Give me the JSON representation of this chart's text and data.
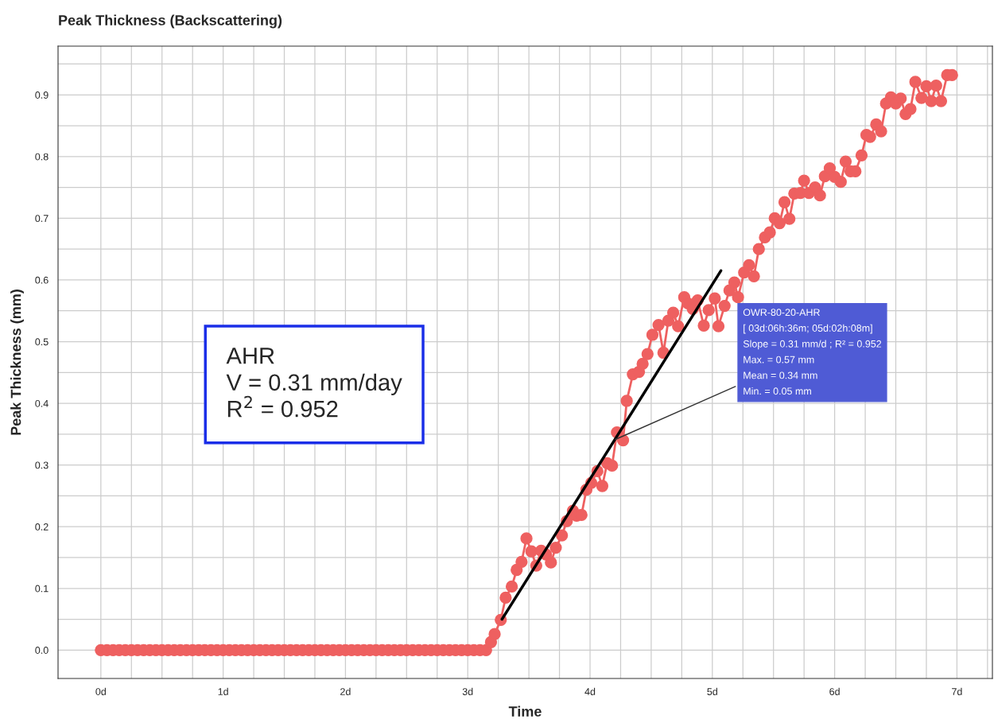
{
  "chart_data": {
    "type": "line",
    "title": "Peak Thickness (Backscattering)",
    "xlabel": "Time",
    "ylabel": "Peak Thickness (mm)",
    "xlim": [
      -0.35,
      7.29
    ],
    "ylim": [
      -0.046,
      0.979
    ],
    "xticks": [
      {
        "value": 0,
        "label": "0d"
      },
      {
        "value": 0.25,
        "label": null
      },
      {
        "value": 0.5,
        "label": null
      },
      {
        "value": 0.75,
        "label": null
      },
      {
        "value": 1,
        "label": "1d"
      },
      {
        "value": 1.25,
        "label": null
      },
      {
        "value": 1.5,
        "label": null
      },
      {
        "value": 1.75,
        "label": null
      },
      {
        "value": 2,
        "label": "2d"
      },
      {
        "value": 2.25,
        "label": null
      },
      {
        "value": 2.5,
        "label": null
      },
      {
        "value": 2.75,
        "label": null
      },
      {
        "value": 3,
        "label": "3d"
      },
      {
        "value": 3.25,
        "label": null
      },
      {
        "value": 3.5,
        "label": null
      },
      {
        "value": 3.75,
        "label": null
      },
      {
        "value": 4,
        "label": "4d"
      },
      {
        "value": 4.25,
        "label": null
      },
      {
        "value": 4.5,
        "label": null
      },
      {
        "value": 4.75,
        "label": null
      },
      {
        "value": 5,
        "label": "5d"
      },
      {
        "value": 5.25,
        "label": null
      },
      {
        "value": 5.5,
        "label": null
      },
      {
        "value": 5.75,
        "label": null
      },
      {
        "value": 6,
        "label": "6d"
      },
      {
        "value": 6.25,
        "label": null
      },
      {
        "value": 6.5,
        "label": null
      },
      {
        "value": 6.75,
        "label": null
      },
      {
        "value": 7,
        "label": "7d"
      },
      {
        "value": 7.25,
        "label": null
      }
    ],
    "yticks": [
      {
        "value": 0,
        "label": "0.0"
      },
      {
        "value": 0.05,
        "label": null
      },
      0.1,
      {
        "value": 0.15,
        "label": null
      },
      0.2,
      {
        "value": 0.25,
        "label": null
      },
      0.3,
      {
        "value": 0.35,
        "label": null
      },
      0.4,
      {
        "value": 0.45,
        "label": null
      },
      0.5,
      {
        "value": 0.55,
        "label": null
      },
      0.6,
      {
        "value": 0.65,
        "label": null
      },
      0.7,
      {
        "value": 0.75,
        "label": null
      },
      0.8,
      {
        "value": 0.85,
        "label": null
      },
      0.9,
      {
        "value": 0.95,
        "label": null
      }
    ],
    "grid": true,
    "legend": false,
    "series": [
      {
        "color": "#ee6060",
        "marker": "circle",
        "line_style": "solid",
        "x": [
          0,
          0.05,
          0.1,
          0.15,
          0.2,
          0.25,
          0.3,
          0.35,
          0.4,
          0.45,
          0.5,
          0.55,
          0.6,
          0.65,
          0.7,
          0.75,
          0.8,
          0.85,
          0.9,
          0.95,
          1,
          1.05,
          1.1,
          1.15,
          1.2,
          1.25,
          1.3,
          1.35,
          1.4,
          1.45,
          1.5,
          1.55,
          1.6,
          1.65,
          1.7,
          1.75,
          1.8,
          1.85,
          1.9,
          1.95,
          2,
          2.05,
          2.1,
          2.15,
          2.2,
          2.25,
          2.3,
          2.35,
          2.4,
          2.45,
          2.5,
          2.55,
          2.6,
          2.65,
          2.7,
          2.75,
          2.8,
          2.85,
          2.9,
          2.95,
          3,
          3.05,
          3.1,
          3.15,
          3.19,
          3.22,
          3.27,
          3.31,
          3.36,
          3.4,
          3.44,
          3.48,
          3.52,
          3.56,
          3.6,
          3.64,
          3.68,
          3.72,
          3.77,
          3.81,
          3.86,
          3.89,
          3.93,
          3.97,
          4.01,
          4.06,
          4.1,
          4.14,
          4.18,
          4.22,
          4.27,
          4.3,
          4.35,
          4.4,
          4.43,
          4.47,
          4.51,
          4.56,
          4.6,
          4.64,
          4.68,
          4.72,
          4.77,
          4.8,
          4.84,
          4.88,
          4.93,
          4.97,
          5.02,
          5.05,
          5.1,
          5.14,
          5.18,
          5.21,
          5.26,
          5.3,
          5.34,
          5.38,
          5.43,
          5.47,
          5.51,
          5.55,
          5.59,
          5.63,
          5.67,
          5.72,
          5.75,
          5.79,
          5.84,
          5.88,
          5.92,
          5.96,
          6.0,
          6.05,
          6.09,
          6.13,
          6.17,
          6.22,
          6.26,
          6.29,
          6.34,
          6.38,
          6.42,
          6.46,
          6.5,
          6.54,
          6.58,
          6.62,
          6.66,
          6.71,
          6.75,
          6.79,
          6.83,
          6.87,
          6.92,
          6.96
        ],
        "values": [
          0,
          0,
          0,
          0,
          0,
          0,
          0,
          0,
          0,
          0,
          0,
          0,
          0,
          0,
          0,
          0,
          0,
          0,
          0,
          0,
          0,
          0,
          0,
          0,
          0,
          0,
          0,
          0,
          0,
          0,
          0,
          0,
          0,
          0,
          0,
          0,
          0,
          0,
          0,
          0,
          0,
          0,
          0,
          0,
          0,
          0,
          0,
          0,
          0,
          0,
          0,
          0,
          0,
          0,
          0,
          0,
          0,
          0,
          0,
          0,
          0,
          0,
          0,
          0,
          0.013,
          0.026,
          0.049,
          0.085,
          0.103,
          0.13,
          0.143,
          0.181,
          0.16,
          0.137,
          0.161,
          0.155,
          0.142,
          0.166,
          0.186,
          0.209,
          0.226,
          0.218,
          0.219,
          0.26,
          0.271,
          0.29,
          0.266,
          0.303,
          0.299,
          0.353,
          0.34,
          0.404,
          0.447,
          0.451,
          0.464,
          0.48,
          0.511,
          0.527,
          0.482,
          0.534,
          0.547,
          0.525,
          0.572,
          0.562,
          0.553,
          0.567,
          0.526,
          0.551,
          0.57,
          0.525,
          0.558,
          0.583,
          0.596,
          0.572,
          0.612,
          0.624,
          0.606,
          0.65,
          0.669,
          0.677,
          0.7,
          0.692,
          0.726,
          0.699,
          0.74,
          0.741,
          0.761,
          0.741,
          0.75,
          0.737,
          0.768,
          0.781,
          0.767,
          0.759,
          0.792,
          0.776,
          0.776,
          0.802,
          0.835,
          0.832,
          0.852,
          0.841,
          0.886,
          0.896,
          0.886,
          0.894,
          0.869,
          0.877,
          0.921,
          0.895,
          0.914,
          0.89,
          0.915,
          0.89,
          0.932,
          0.932
        ]
      },
      {
        "type": "line",
        "color": "#000000",
        "marker": "none",
        "line_style": "solid",
        "x": [
          3.28,
          5.07
        ],
        "values": [
          0.05,
          0.615
        ]
      }
    ],
    "annotations": [
      {
        "text": "OWR-80-20-AHR\n[ 03d:06h:36m; 05d:02h:08m]\nSlope = 0.31 mm/d ; R² = 0.952\nMax. = 0.57 mm\nMean = 0.34 mm\nMin. = 0.05 mm",
        "x": 4.19,
        "y": 0.34
      },
      "AHR\nV = 0.31 mm/day\nR$^{2}$ = 0.952"
    ]
  }
}
